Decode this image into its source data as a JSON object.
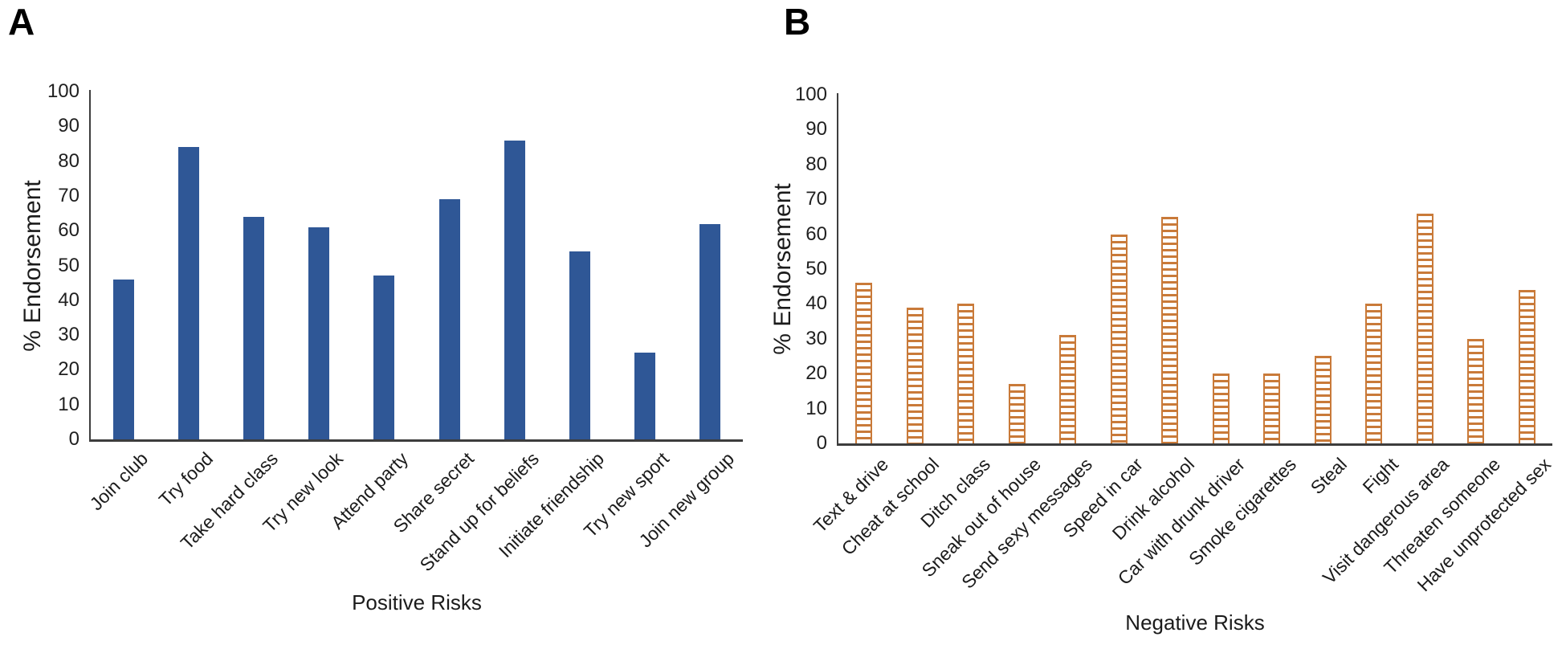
{
  "figure": {
    "background_color": "#ffffff",
    "text_color": "#1b1b1b",
    "axis_color": "#3d3d3d"
  },
  "chart_data": [
    {
      "type": "bar",
      "panel_label": "A",
      "title": "",
      "categories": [
        "Join club",
        "Try food",
        "Take hard class",
        "Try new look",
        "Attend party",
        "Share secret",
        "Stand up for beliefs",
        "Initiate friendship",
        "Try new sport",
        "Join new group"
      ],
      "values": [
        46,
        84,
        64,
        61,
        47,
        69,
        86,
        54,
        25,
        62
      ],
      "xlabel": "Positive Risks",
      "ylabel": "% Endorsement",
      "ylim": [
        0,
        100
      ],
      "ytick_step": 10,
      "ytick_labels": [
        "0",
        "10",
        "20",
        "30",
        "40",
        "50",
        "60",
        "70",
        "80",
        "90",
        "100"
      ],
      "bar_color": "#2F5796",
      "bar_style": "solid",
      "grid": false,
      "legend": "none"
    },
    {
      "type": "bar",
      "panel_label": "B",
      "title": "",
      "categories": [
        "Text & drive",
        "Cheat at school",
        "Ditch class",
        "Sneak out of house",
        "Send sexy messages",
        "Speed in car",
        "Drink alcohol",
        "Car with drunk driver",
        "Smoke cigarettes",
        "Steal",
        "Fight",
        "Visit dangerous area",
        "Threaten someone",
        "Have unprotected sex"
      ],
      "values": [
        46,
        39,
        40,
        17,
        31,
        60,
        65,
        20,
        20,
        25,
        40,
        66,
        30,
        44
      ],
      "xlabel": "Negative Risks",
      "ylabel": "% Endorsement",
      "ylim": [
        0,
        100
      ],
      "ytick_step": 10,
      "ytick_labels": [
        "0",
        "10",
        "20",
        "30",
        "40",
        "50",
        "60",
        "70",
        "80",
        "90",
        "100"
      ],
      "bar_color": "#C97A39",
      "bar_style": "horizontal-stripes",
      "grid": false,
      "legend": "none"
    }
  ]
}
